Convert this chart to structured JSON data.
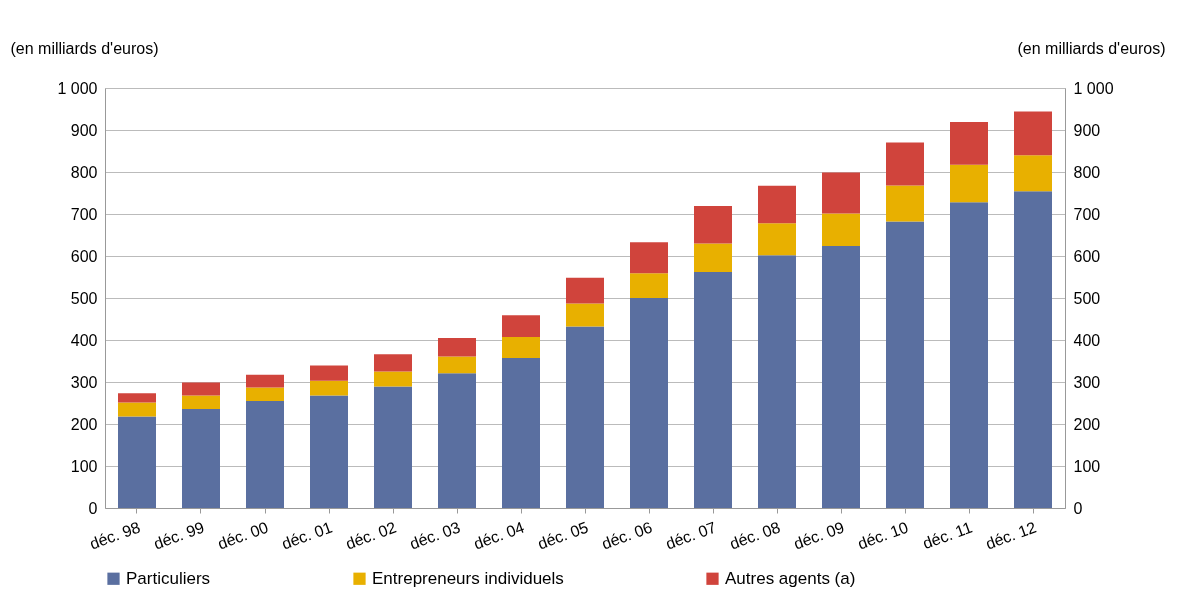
{
  "chart_data": {
    "type": "bar",
    "stacked": true,
    "ylabel": "(en milliards d'euros)",
    "y2label": "(en milliards d'euros)",
    "categories": [
      "déc. 98",
      "déc. 99",
      "déc. 00",
      "déc. 01",
      "déc. 02",
      "déc. 03",
      "déc. 04",
      "déc. 05",
      "déc. 06",
      "déc. 07",
      "déc. 08",
      "déc. 09",
      "déc. 10",
      "déc. 11",
      "déc. 12"
    ],
    "series": [
      {
        "name": "Particuliers",
        "color": "#5a6fa0",
        "values": [
          218,
          236,
          255,
          268,
          289,
          321,
          357,
          432,
          500,
          562,
          602,
          624,
          682,
          728,
          754
        ]
      },
      {
        "name": "Entrepreneurs individuels",
        "color": "#e8b000",
        "values": [
          33,
          32,
          32,
          35,
          36,
          40,
          50,
          55,
          59,
          68,
          76,
          77,
          86,
          89,
          86
        ]
      },
      {
        "name": "Autres agents (a)",
        "color": "#d0443c",
        "values": [
          22,
          31,
          30,
          36,
          41,
          44,
          52,
          61,
          74,
          89,
          89,
          98,
          102,
          102,
          104
        ]
      }
    ],
    "ylim": [
      0,
      1000
    ],
    "yticks": [
      0,
      100,
      200,
      300,
      400,
      500,
      600,
      700,
      800,
      900,
      {
        "value": 1000,
        "label": "1 000"
      }
    ],
    "y2lim": [
      0,
      1000
    ],
    "y2ticks": [
      0,
      100,
      200,
      300,
      400,
      500,
      600,
      700,
      800,
      900,
      {
        "value": 1000,
        "label": "1 000"
      }
    ],
    "grid": "y",
    "legend": "bottom"
  }
}
